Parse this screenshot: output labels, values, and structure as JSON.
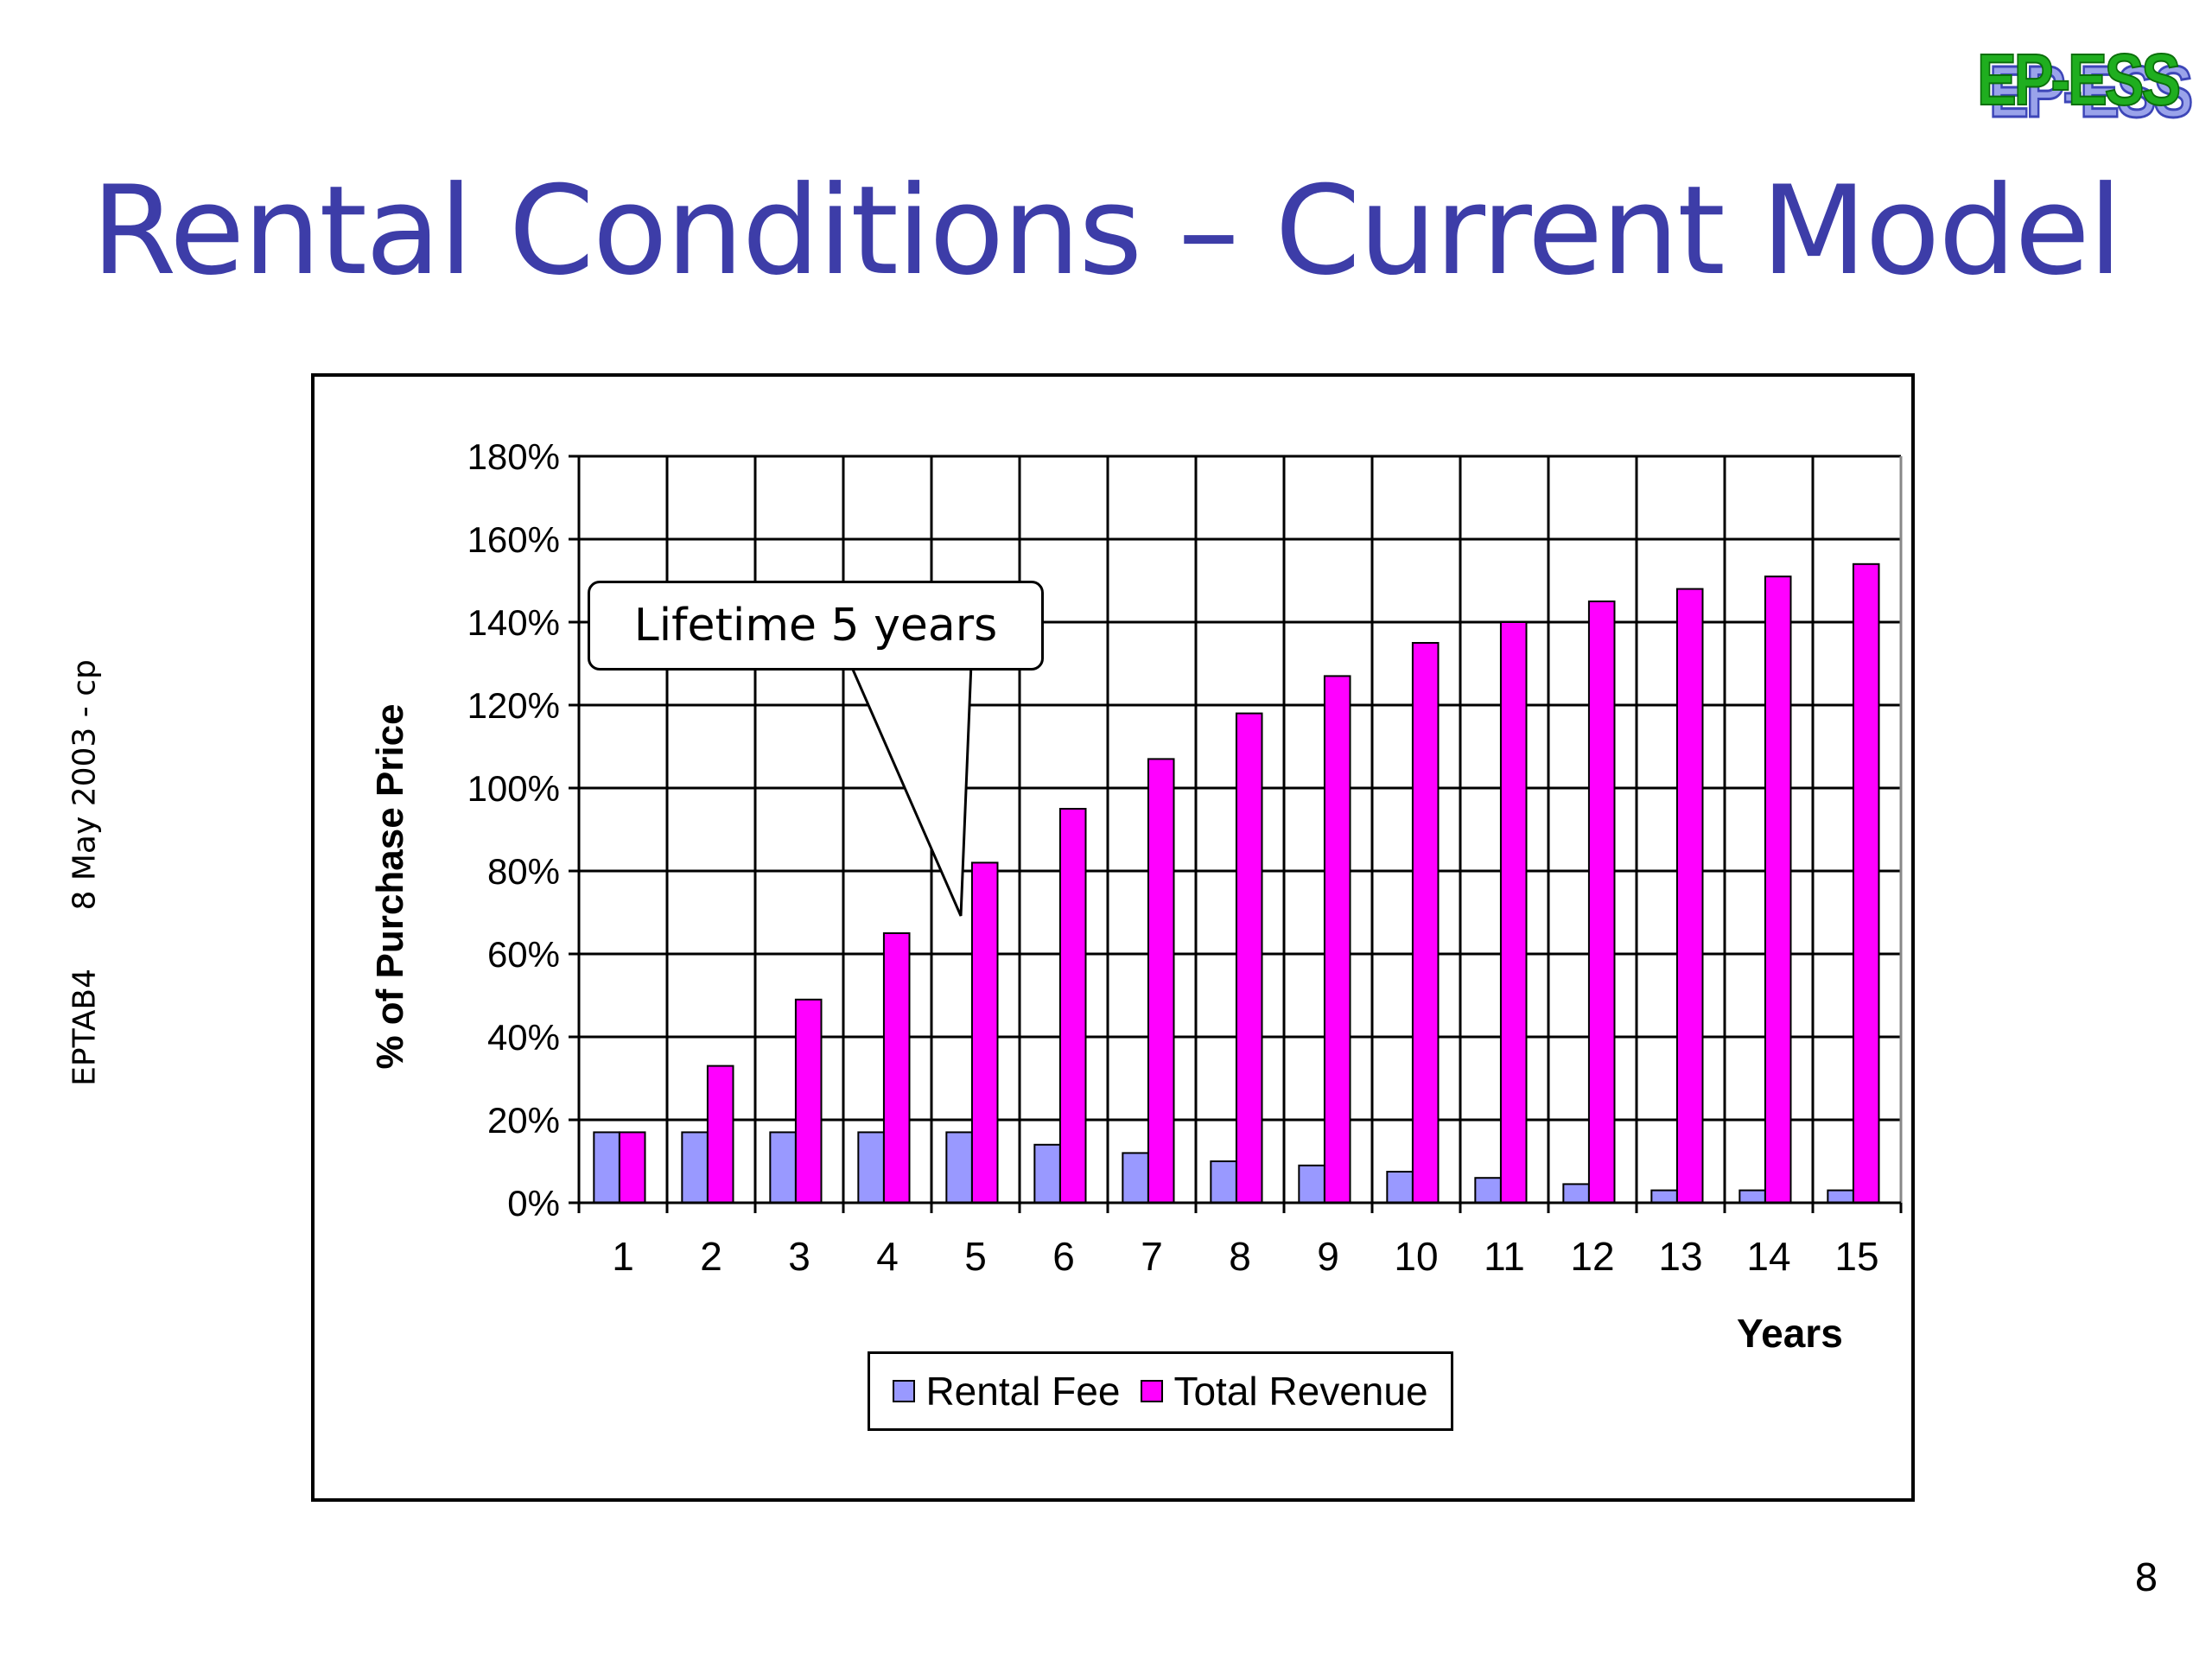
{
  "slide": {
    "title": "Rental Conditions – Current Model",
    "logo_text": "EP-ESS",
    "side_left": "EPTAB4",
    "side_right": "8 May 2003 - cp",
    "page_number": "8"
  },
  "chart_data": {
    "type": "bar",
    "categories": [
      "1",
      "2",
      "3",
      "4",
      "5",
      "6",
      "7",
      "8",
      "9",
      "10",
      "11",
      "12",
      "13",
      "14",
      "15"
    ],
    "series": [
      {
        "name": "Rental Fee",
        "color": "#9999ff",
        "values": [
          17,
          17,
          17,
          17,
          17,
          14,
          12,
          10,
          9,
          7.5,
          6,
          4.5,
          3,
          3,
          3
        ]
      },
      {
        "name": "Total Revenue",
        "color": "#ff00ff",
        "values": [
          17,
          33,
          49,
          65,
          82,
          95,
          107,
          118,
          127,
          135,
          140,
          145,
          148,
          151,
          154
        ]
      }
    ],
    "xlabel": "Years",
    "ylabel": "% of Purchase Price",
    "ylim": [
      0,
      180
    ],
    "yticks": [
      "0%",
      "20%",
      "40%",
      "60%",
      "80%",
      "100%",
      "120%",
      "140%",
      "160%",
      "180%"
    ],
    "grid": true,
    "legend_position": "bottom",
    "annotation": "Lifetime 5 years"
  }
}
